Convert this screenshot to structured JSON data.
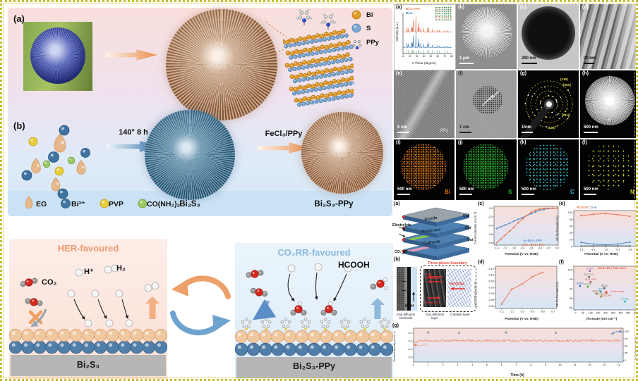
{
  "fig": {
    "a": "(a)",
    "b": "(b)",
    "crystal": {
      "bi": "Bi",
      "s": "S",
      "ppy": "PPy"
    },
    "syn": {
      "arrow1": "140° 8 h",
      "arrow2": "FeCl₃/PPy",
      "p1": "Bi₂S₃",
      "p2": "Bi₂S₃-PPy",
      "r1": "EG",
      "r2": "Bi³⁺",
      "r3": "PVP",
      "r4": "CO(NH₂)₂"
    },
    "mech": {
      "her": "HER-favoured",
      "co2rr": "CO₂RR-favoured",
      "co2": "CO₂",
      "hp": "H⁺",
      "h2": "H₂",
      "hcooh": "HCOOH",
      "slab1": "Bi₂S₃",
      "slab2": "Bi₂S₃-PPy"
    },
    "micro": {
      "la": "(a)",
      "lb": "(b)",
      "lc": "(c)",
      "ld": "(d)",
      "le": "(e)",
      "lf": "(f)",
      "lg": "(g)",
      "lh": "(h)",
      "li": "(i)",
      "lj": "(j)",
      "lk": "(k)",
      "ll": "(l)",
      "sb": "1 μm",
      "sc": "200 nm",
      "sd": "20 nm",
      "se": "5 nm",
      "sf": "1 nm",
      "sg": "1/nm",
      "sh": "500 nm",
      "si": "500 nm",
      "sj": "500 nm",
      "sk": "500 nm",
      "sl": "500 nm",
      "ppy": "PPy",
      "dspace": "0.36 nm",
      "r1": "(130)",
      "r2": "[061]",
      "r3": "(211)",
      "r4": "(120)",
      "eBi": "Bi",
      "eS": "S",
      "eC": "C",
      "eN": "N"
    },
    "cell": {
      "l": "(a)",
      "anode": "Anode",
      "membrane": "Membrane",
      "cathode": "Cathode",
      "ely": "Electrolyte",
      "co2": "CO₂ in",
      "out1": "Out",
      "out2": "Out",
      "out3": "Out"
    },
    "tpb": {
      "l": "(b)",
      "title": "Three-phase boundary",
      "koh": "KOH",
      "gp": "Gas Products",
      "feed": "Feed CO₂",
      "hcooh": "HCOOH",
      "c1": "Gas diffusion electrode",
      "c2": "Gas diffusion layer",
      "c3": "Catalyst layer"
    },
    "plots": {
      "lc": "(c)",
      "ld": "(d)",
      "le": "(e)",
      "lf": "(f)",
      "lg": "(g)"
    }
  },
  "chart_data": [
    {
      "id": "xrd",
      "type": "xrd",
      "xlabel": "2 Theta (degree)",
      "ylabel": "Intensity (a.u.)",
      "xlim": [
        10,
        80
      ],
      "xticks": [
        "10",
        "20",
        "30",
        "40",
        "50",
        "60",
        "70",
        "80"
      ],
      "legend": [
        {
          "label": "Bi₂S₃-PPy",
          "color": "#e0724d"
        },
        {
          "label": "Bi₂S₃",
          "color": "#3f7fb5"
        }
      ],
      "peaks": [
        [
          15.8,
          20
        ],
        [
          17.6,
          16
        ],
        [
          22.4,
          26
        ],
        [
          23.7,
          22
        ],
        [
          24.9,
          38
        ],
        [
          25.2,
          30
        ],
        [
          28.6,
          62
        ],
        [
          31.8,
          42
        ],
        [
          33.0,
          22
        ],
        [
          35.6,
          18
        ],
        [
          39.9,
          15
        ],
        [
          45.6,
          20
        ],
        [
          46.6,
          16
        ],
        [
          52.7,
          12
        ],
        [
          59.2,
          9
        ],
        [
          62.6,
          8
        ],
        [
          70.2,
          6
        ],
        [
          74.5,
          5
        ]
      ]
    },
    {
      "id": "lsv",
      "type": "line",
      "xlabel": "Potential (V vs. RHE)",
      "ylabel": "Current density (A cm⁻²)",
      "xlim": [
        -1.46,
        0.03
      ],
      "ylim": [
        -0.85,
        0.04
      ],
      "xticks": [
        "-1.4",
        "-1.2",
        "-1.0",
        "-0.8",
        "-0.6",
        "-0.4",
        "-0.2",
        "0.0"
      ],
      "yticks": [
        "0.0",
        "-0.2",
        "-0.4",
        "-0.6",
        "-0.8"
      ],
      "series": [
        {
          "name": "Ar–Bi₂S₃-PPy",
          "color": "#5b8fc9",
          "x": [
            -1.4,
            -1.3,
            -1.2,
            -1.1,
            -1.0,
            -0.9,
            -0.8,
            -0.7,
            -0.6,
            -0.5,
            -0.4,
            -0.3,
            -0.2,
            -0.1,
            0.0
          ],
          "y": [
            -0.47,
            -0.43,
            -0.39,
            -0.35,
            -0.3,
            -0.26,
            -0.22,
            -0.17,
            -0.13,
            -0.09,
            -0.05,
            -0.03,
            -0.013,
            -0.004,
            0.0
          ]
        },
        {
          "name": "CO₂–Bi₂S₃-PPy",
          "color": "#e8764f",
          "x": [
            -1.4,
            -1.3,
            -1.2,
            -1.1,
            -1.0,
            -0.9,
            -0.8,
            -0.7,
            -0.6,
            -0.5,
            -0.4,
            -0.3,
            -0.2,
            -0.1,
            0.0
          ],
          "y": [
            -0.8,
            -0.71,
            -0.62,
            -0.53,
            -0.44,
            -0.34,
            -0.25,
            -0.17,
            -0.1,
            -0.05,
            -0.02,
            -0.008,
            -0.002,
            0.0,
            0.0
          ]
        }
      ]
    },
    {
      "id": "fe",
      "type": "line",
      "xlabel": "Potential (V vs. RHE)",
      "ylabel": "FE for formate (%)",
      "xlim": [
        -1.26,
        -0.74
      ],
      "ylim": [
        0,
        106
      ],
      "xticks": [
        "-1.2",
        "-1.1",
        "-1.0",
        "-0.9",
        "-0.8"
      ],
      "yticks": [
        "0",
        "20",
        "40",
        "60",
        "80",
        "100"
      ],
      "series": [
        {
          "name": "HCOOH",
          "color": "#e8764f",
          "x": [
            -1.2,
            -1.1,
            -1.0,
            -0.9,
            -0.8
          ],
          "y": [
            91,
            95,
            97,
            94,
            89
          ]
        },
        {
          "name": "CO",
          "color": "#8a8a8a",
          "x": [
            -1.2,
            -1.1,
            -1.0,
            -0.9,
            -0.8
          ],
          "y": [
            2,
            2,
            3,
            2,
            2
          ]
        },
        {
          "name": "H₂",
          "color": "#4f86c0",
          "x": [
            -1.2,
            -1.1,
            -1.0,
            -0.9,
            -0.8
          ],
          "y": [
            12,
            7,
            5,
            7,
            13
          ]
        }
      ]
    },
    {
      "id": "jh",
      "type": "line",
      "xlabel": "Potential (V vs. RHE)",
      "ylabel": "j HCOOH (A cm⁻²)",
      "xlim": [
        -1.26,
        -0.66
      ],
      "ylim": [
        -0.42,
        -0.08
      ],
      "xticks": [
        "-1.2",
        "-1.1",
        "-1.0",
        "-0.9",
        "-0.8",
        "-0.7"
      ],
      "yticks": [
        "-0.10",
        "-0.15",
        "-0.20",
        "-0.25",
        "-0.30",
        "-0.35",
        "-0.40"
      ],
      "series": [
        {
          "name": "Bi₂S₃-PPy",
          "color": "#e8764f",
          "x": [
            -1.2,
            -1.1,
            -1.0,
            -0.9,
            -0.8
          ],
          "y": [
            -0.385,
            -0.265,
            -0.225,
            -0.165,
            -0.13
          ]
        }
      ]
    },
    {
      "id": "cmp",
      "type": "scatter",
      "xlabel": "j formate (mA cm⁻²)",
      "ylabel": "FE for formate (%)",
      "xlim": [
        -12,
        412
      ],
      "ylim": [
        79,
        102
      ],
      "xticks": [
        "0",
        "50",
        "100",
        "150",
        "200",
        "250",
        "300",
        "350",
        "400"
      ],
      "yticks": [
        "80",
        "85",
        "90",
        "95",
        "100"
      ],
      "note1": "Bi₂S₃-PPy This work",
      "note2": "In this work",
      "points": [
        {
          "label": "Bi NWs",
          "x": 95,
          "y": 99.5,
          "color": "#8e6bb8"
        },
        {
          "label": "Bi₂O₂CO₃",
          "x": 90,
          "y": 96.3,
          "color": "#6b6b6b"
        },
        {
          "label": "Bi₂O₃ NTs",
          "x": 100,
          "y": 93.6,
          "color": "#c0504d"
        },
        {
          "label": "Bi NPs",
          "x": 30,
          "y": 91.6,
          "color": "#4472c4"
        },
        {
          "label": "S-Bi₂O₃",
          "x": 82,
          "y": 91.2,
          "color": "#4ca64c"
        },
        {
          "label": "BiOCl",
          "x": 192,
          "y": 90.4,
          "color": "#5b5b5b"
        },
        {
          "label": "Bi/C",
          "x": 168,
          "y": 88.6,
          "color": "#2e9ac4"
        },
        {
          "label": "MOF-Bi",
          "x": 140,
          "y": 87.6,
          "color": "#8a6d3b"
        },
        {
          "label": "Bi₂S₃-PPy",
          "x": 205,
          "y": 88.2,
          "color": "#e8483c",
          "star": true
        },
        {
          "label": "Bi₂S₃/Bi₂O₃",
          "x": 170,
          "y": 86.0,
          "color": "#9a9a30"
        },
        {
          "label": "Bi NSs",
          "x": 330,
          "y": 83.4,
          "color": "#2ab8b8"
        }
      ]
    },
    {
      "id": "stab",
      "type": "stability",
      "xlabel": "Time (h)",
      "ylabel_left": "Current density (A cm⁻²)",
      "ylabel_right": "FE for HCOOH (%)",
      "xlim": [
        0,
        14.3
      ],
      "xticks": [
        "0",
        "1",
        "2",
        "3",
        "4",
        "5",
        "6",
        "7",
        "8",
        "9",
        "10",
        "11",
        "12",
        "13",
        "14"
      ],
      "ylim": [
        -0.56,
        -0.14
      ],
      "yticks": [
        "-0.2",
        "-0.3",
        "-0.4",
        "-0.5"
      ],
      "ylim_right": [
        -6,
        112
      ],
      "yticks_right": [
        "0",
        "25",
        "50",
        "75",
        "100"
      ],
      "baseline": -0.295,
      "noise": 0.013,
      "color": "#e8845e",
      "star_color": "#7d8ea4",
      "fe_stars": [
        [
          1,
          97
        ],
        [
          3.1,
          96
        ],
        [
          6.3,
          97
        ],
        [
          9.7,
          96
        ],
        [
          13.6,
          94
        ]
      ]
    }
  ]
}
